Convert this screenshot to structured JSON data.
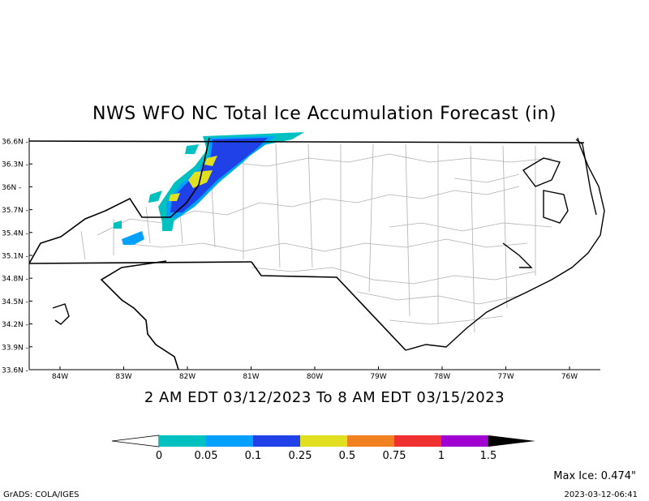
{
  "title": "NWS WFO NC Total Ice Accumulation Forecast (in)",
  "valid_period": "2 AM EDT 03/12/2023 To 8 AM EDT 03/15/2023",
  "lat_ticks": [
    "36.6N",
    "36.3N",
    "36N",
    "35.7N",
    "35.4N",
    "35.1N",
    "34.8N",
    "34.5N",
    "34.2N",
    "33.9N",
    "33.6N"
  ],
  "lon_ticks": [
    "84W",
    "83W",
    "82W",
    "81W",
    "80W",
    "79W",
    "78W",
    "77W",
    "76W"
  ],
  "legend": {
    "labels": [
      "0",
      "0.05",
      "0.1",
      "0.25",
      "0.5",
      "0.75",
      "1",
      "1.5"
    ],
    "colors": [
      "#00c0c0",
      "#00a0ff",
      "#2040e8",
      "#e0e020",
      "#f08020",
      "#f03030",
      "#a000d0"
    ]
  },
  "max_ice": "Max Ice: 0.474\"",
  "credit": "GrADS: COLA/IGES",
  "timestamp": "2023-03-12-06:41"
}
